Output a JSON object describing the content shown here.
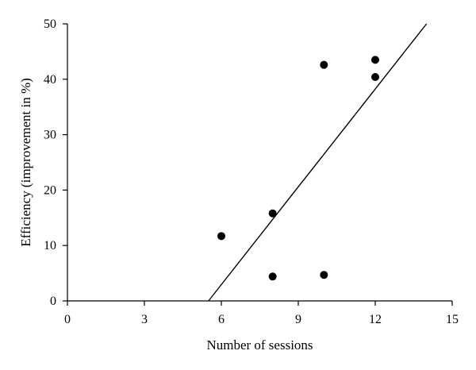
{
  "chart_data": {
    "type": "scatter",
    "xlabel": "Number of sessions",
    "ylabel": "Efficiency (improvement in %)",
    "xlim": [
      0,
      15
    ],
    "ylim": [
      0,
      50
    ],
    "xticks": [
      0,
      3,
      6,
      9,
      12,
      15
    ],
    "yticks": [
      0,
      10,
      20,
      30,
      40,
      50
    ],
    "grid": false,
    "series": [
      {
        "points": [
          {
            "x": 6,
            "y": 11.7
          },
          {
            "x": 8,
            "y": 15.8
          },
          {
            "x": 8,
            "y": 4.4
          },
          {
            "x": 10,
            "y": 42.6
          },
          {
            "x": 10,
            "y": 4.7
          },
          {
            "x": 12,
            "y": 43.5
          },
          {
            "x": 12,
            "y": 40.4
          }
        ]
      }
    ],
    "fit_line": {
      "x": [
        5.5,
        14
      ],
      "y": [
        0,
        50
      ]
    }
  }
}
